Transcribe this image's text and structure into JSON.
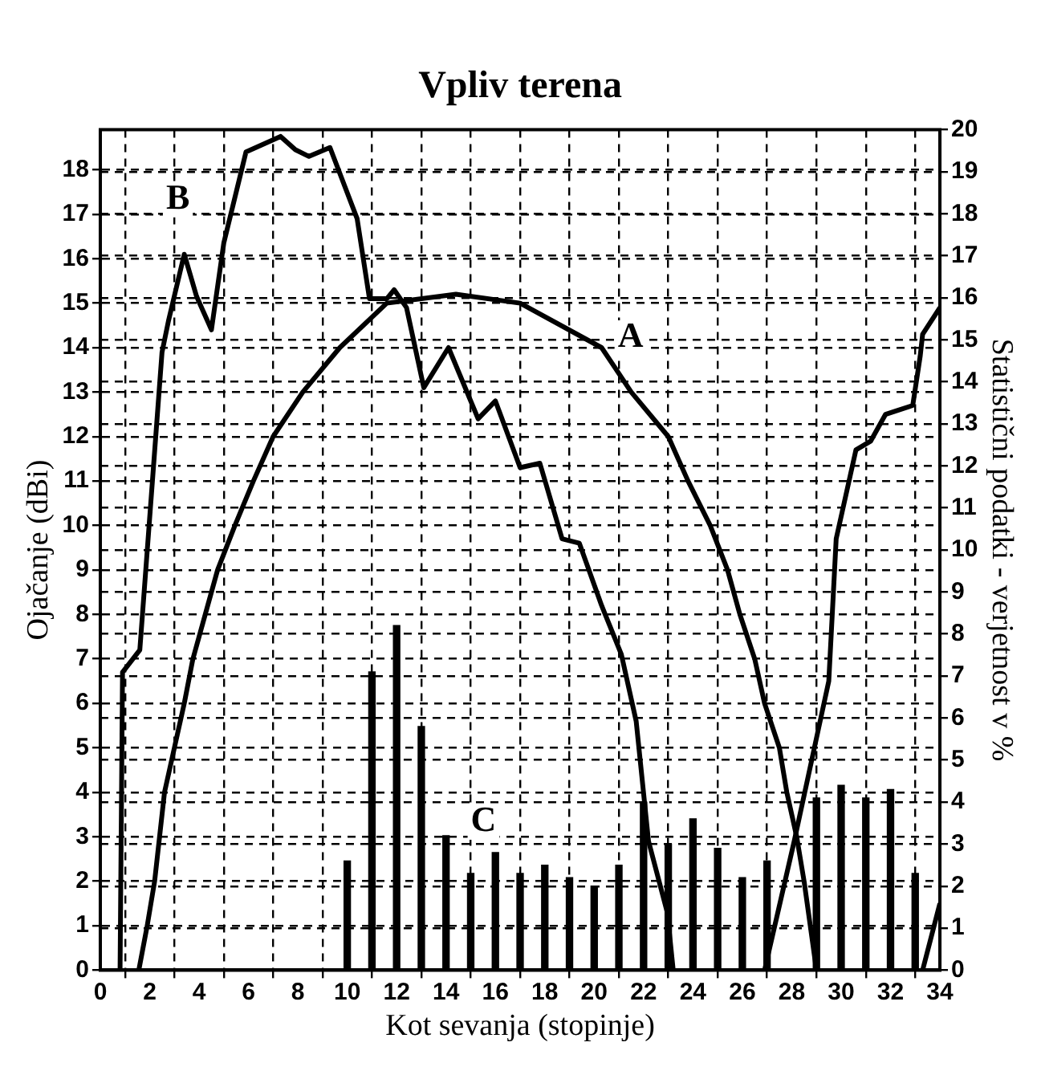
{
  "chart_data": {
    "type": "line",
    "title": "Vpliv terena",
    "xlabel": "Kot sevanja (stopinje)",
    "ylabel": "Ojačanje (dBi)",
    "y2label": "Statistični podatki - verjetnost v %",
    "xlim": [
      0,
      34
    ],
    "xticks": [
      0,
      2,
      4,
      6,
      8,
      10,
      12,
      14,
      16,
      18,
      20,
      22,
      24,
      26,
      28,
      30,
      32,
      34
    ],
    "ylim": [
      0,
      18.9
    ],
    "yticks": [
      0,
      1,
      2,
      3,
      4,
      5,
      6,
      7,
      8,
      9,
      10,
      11,
      12,
      13,
      14,
      15,
      16,
      17,
      18
    ],
    "y2lim": [
      0,
      20
    ],
    "y2ticks": [
      0,
      1,
      2,
      3,
      4,
      5,
      6,
      7,
      8,
      9,
      10,
      11,
      12,
      13,
      14,
      15,
      16,
      17,
      18,
      19,
      20
    ],
    "grid": true,
    "marker": "none",
    "series": [
      {
        "name": "A",
        "color": "#000000",
        "x": [
          1.56,
          1.9,
          2.2,
          2.6,
          3.4,
          3.75,
          4.75,
          5.45,
          6.2,
          7.0,
          8.2,
          9.7,
          11.6,
          14.4,
          17.0,
          20.3,
          21.5,
          23.0,
          23.8,
          24.7,
          25.4,
          25.9,
          26.5,
          26.9,
          27.5,
          27.8,
          28.2,
          28.5,
          29.0,
          31,
          33.3,
          34.0
        ],
        "values": [
          0,
          1,
          2,
          4,
          6,
          7,
          9,
          10,
          11,
          12,
          13,
          14,
          15,
          15.2,
          15,
          14,
          13,
          12,
          11,
          10,
          9,
          8,
          7,
          6,
          5,
          4,
          3,
          2,
          0,
          null,
          0,
          1.5
        ]
      },
      {
        "name": "B",
        "color": "#000000",
        "x": [
          0.8,
          0.9,
          1.6,
          2.5,
          2.76,
          3.4,
          3.9,
          4.5,
          5.0,
          5.9,
          7.3,
          7.9,
          8.45,
          9.3,
          10.4,
          10.9,
          11.6,
          11.9,
          12.4,
          13.1,
          14.1,
          15.3,
          16.0,
          17.0,
          17.8,
          18.7,
          19.4,
          20.3,
          21.1,
          21.7,
          22.2,
          22.96,
          23.2,
          25,
          26.9,
          28.1,
          29.5,
          29.8,
          30.6,
          31.2,
          31.8,
          32.9,
          33.2,
          33.3,
          34.0
        ],
        "values": [
          0,
          6.7,
          7.2,
          13.9,
          14.6,
          16.1,
          15.15,
          14.4,
          16.35,
          18.4,
          18.75,
          18.45,
          18.3,
          18.5,
          16.9,
          15.1,
          15.1,
          15.3,
          14.9,
          13.1,
          14.0,
          12.4,
          12.8,
          11.3,
          11.4,
          9.7,
          9.6,
          8.2,
          7.1,
          5.6,
          2.9,
          1.3,
          0,
          null,
          0,
          2.9,
          6.5,
          9.7,
          11.7,
          11.9,
          12.5,
          12.7,
          13.8,
          14.3,
          14.9
        ]
      },
      {
        "name": "C",
        "type": "bar",
        "axis": "y2",
        "color": "#000000",
        "x": [
          10,
          11,
          12,
          13,
          14,
          15,
          16,
          17,
          18,
          19,
          20,
          21,
          22,
          23,
          24,
          25,
          26,
          27,
          29,
          30,
          31,
          32,
          33
        ],
        "values": [
          2.6,
          7.1,
          8.2,
          5.8,
          3.2,
          2.3,
          2.8,
          2.3,
          2.5,
          2.2,
          2.0,
          2.5,
          4.0,
          3.0,
          3.6,
          2.9,
          2.2,
          2.6,
          4.1,
          4.4,
          4.1,
          4.3,
          2.3
        ]
      }
    ]
  }
}
